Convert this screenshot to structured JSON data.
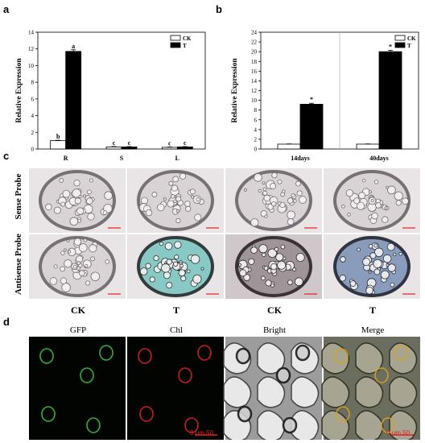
{
  "panels": {
    "a": "a",
    "b": "b",
    "c": "c",
    "d": "d"
  },
  "chart_data": [
    {
      "type": "bar",
      "ylabel": "Relative Expression",
      "categories": [
        "R",
        "S",
        "L"
      ],
      "ylim": [
        0,
        14
      ],
      "yticks": [
        "0",
        "2",
        "4",
        "6",
        "8",
        "10",
        "12",
        "14"
      ],
      "legend": "top-right",
      "series": [
        {
          "name": "CK",
          "values": [
            1.0,
            0.25,
            0.2
          ],
          "errors": [
            0.05,
            0.05,
            0.04
          ],
          "color": "#ffffff"
        },
        {
          "name": "T",
          "values": [
            11.7,
            0.25,
            0.25
          ],
          "errors": [
            0.2,
            0.04,
            0.04
          ],
          "color": "#000000"
        }
      ],
      "annotations": [
        [
          "b",
          "a"
        ],
        [
          "c",
          "c"
        ],
        [
          "c",
          "c"
        ]
      ]
    },
    {
      "type": "bar",
      "ylabel": "Relative Expression",
      "categories": [
        "14days",
        "40days"
      ],
      "ylim": [
        0,
        24
      ],
      "yticks": [
        "0",
        "2",
        "4",
        "6",
        "8",
        "10",
        "12",
        "14",
        "16",
        "18",
        "20",
        "22",
        "24"
      ],
      "legend": "top-right",
      "series": [
        {
          "name": "CK",
          "values": [
            1.0,
            1.0
          ],
          "errors": [
            0.05,
            0.05
          ],
          "color": "#ffffff"
        },
        {
          "name": "T",
          "values": [
            9.2,
            20.0
          ],
          "errors": [
            0.2,
            0.3
          ],
          "color": "#000000"
        }
      ],
      "annotations": [
        [
          "",
          "*"
        ],
        [
          "",
          "*"
        ]
      ]
    }
  ],
  "section_c": {
    "row_labels": [
      "Sense Probe",
      "Antisense Probe"
    ],
    "col_labels": [
      "CK",
      "T",
      "CK",
      "T"
    ]
  },
  "section_d": {
    "titles": [
      "GFP",
      "Chl",
      "Bright",
      "Merge"
    ],
    "scale_text": "0    μm    50"
  }
}
